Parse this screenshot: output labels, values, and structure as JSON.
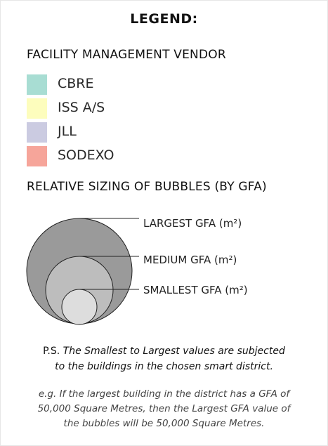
{
  "legend": {
    "title": "LEGEND:"
  },
  "vendors": {
    "heading": "FACILITY MANAGEMENT VENDOR",
    "items": [
      {
        "label": "CBRE",
        "color": "#a8ddd3"
      },
      {
        "label": "ISS A/S",
        "color": "#fdfdbd"
      },
      {
        "label": "JLL",
        "color": "#cbcbe1"
      },
      {
        "label": "SODEXO",
        "color": "#f6a59a"
      }
    ]
  },
  "bubbles": {
    "heading": "RELATIVE SIZING OF BUBBLES (BY GFA)",
    "labels": {
      "largest": "LARGEST GFA (m²)",
      "medium": "MEDIUM GFA (m²)",
      "smallest": "SMALLEST GFA (m²)"
    },
    "colors": {
      "largest": "#9a9a9a",
      "medium": "#bdbdbd",
      "smallest": "#dddddd",
      "stroke": "#222222"
    }
  },
  "note": {
    "ps_prefix": "P.S.",
    "line1": "The Smallest to Largest values are subjected",
    "line2": "to the buildings in the chosen smart district."
  },
  "example": {
    "line1": "e.g. If the largest building in the district has a GFA of",
    "line2": "50,000 Square Metres, then the Largest GFA value of",
    "line3": "the bubbles will be 50,000 Square Metres."
  }
}
